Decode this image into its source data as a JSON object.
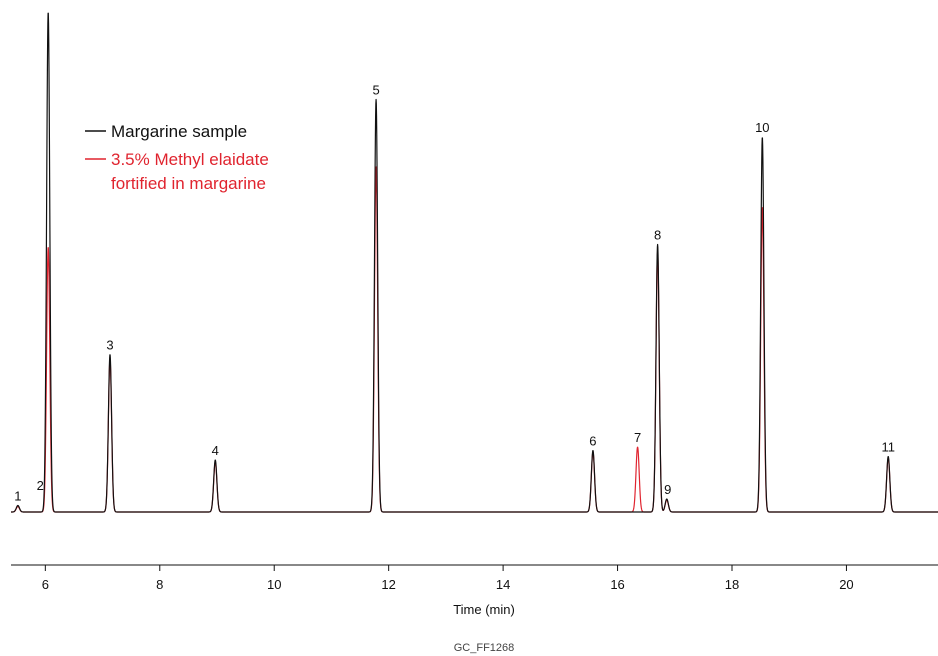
{
  "chart_data": {
    "type": "line",
    "xlabel": "Time (min)",
    "ylabel": "",
    "xlim": [
      5.4,
      21.6
    ],
    "ylim": [
      0,
      100
    ],
    "xticks": [
      6,
      8,
      10,
      12,
      14,
      16,
      18,
      20
    ],
    "grid": false,
    "legend_position": "top-left",
    "legend": [
      {
        "label": "Margarine sample",
        "color": "#111111"
      },
      {
        "label": "3.5% Methyl elaidate fortified in margarine",
        "line1": "3.5% Methyl elaidate",
        "line2": "fortified in margarine",
        "color": "#e0242f"
      }
    ],
    "series": [
      {
        "name": "Margarine sample",
        "color": "#111111",
        "peaks": [
          {
            "label": "1",
            "x": 5.52,
            "y": 1.3
          },
          {
            "label": "2",
            "x": 6.05,
            "y": 100
          },
          {
            "label": "3",
            "x": 7.13,
            "y": 31.5
          },
          {
            "label": "4",
            "x": 8.97,
            "y": 10.4
          },
          {
            "label": "5",
            "x": 11.78,
            "y": 82.5
          },
          {
            "label": "6",
            "x": 15.57,
            "y": 12.3
          },
          {
            "label": "8",
            "x": 16.7,
            "y": 53.5
          },
          {
            "label": "9",
            "x": 16.86,
            "y": 2.6
          },
          {
            "label": "10",
            "x": 18.53,
            "y": 75
          },
          {
            "label": "11",
            "x": 20.73,
            "y": 11.1
          }
        ]
      },
      {
        "name": "3.5% Methyl elaidate fortified in margarine",
        "color": "#e0242f",
        "peaks": [
          {
            "label": "1",
            "x": 5.52,
            "y": 1.1
          },
          {
            "label": "2",
            "x": 6.05,
            "y": 53
          },
          {
            "label": "3",
            "x": 7.13,
            "y": 30.5
          },
          {
            "label": "4",
            "x": 8.97,
            "y": 10
          },
          {
            "label": "5",
            "x": 11.78,
            "y": 69
          },
          {
            "label": "6",
            "x": 15.57,
            "y": 12
          },
          {
            "label": "7",
            "x": 16.35,
            "y": 13
          },
          {
            "label": "8",
            "x": 16.7,
            "y": 52
          },
          {
            "label": "9",
            "x": 16.86,
            "y": 2.4
          },
          {
            "label": "10",
            "x": 18.53,
            "y": 61
          },
          {
            "label": "11",
            "x": 20.73,
            "y": 10.8
          }
        ]
      }
    ],
    "peak_labels": [
      {
        "label": "1",
        "x": 5.52,
        "y": 1.3
      },
      {
        "label": "2",
        "x": 6.05,
        "y": 3.4
      },
      {
        "label": "3",
        "x": 7.13,
        "y": 31.5
      },
      {
        "label": "4",
        "x": 8.97,
        "y": 10.4
      },
      {
        "label": "5",
        "x": 11.78,
        "y": 82.5
      },
      {
        "label": "6",
        "x": 15.57,
        "y": 12.3
      },
      {
        "label": "7",
        "x": 16.35,
        "y": 13
      },
      {
        "label": "8",
        "x": 16.7,
        "y": 53.5
      },
      {
        "label": "9",
        "x": 16.86,
        "y": 2.6
      },
      {
        "label": "10",
        "x": 18.53,
        "y": 75
      },
      {
        "label": "11",
        "x": 20.73,
        "y": 11.1
      }
    ],
    "footer": "GC_FF1268"
  }
}
